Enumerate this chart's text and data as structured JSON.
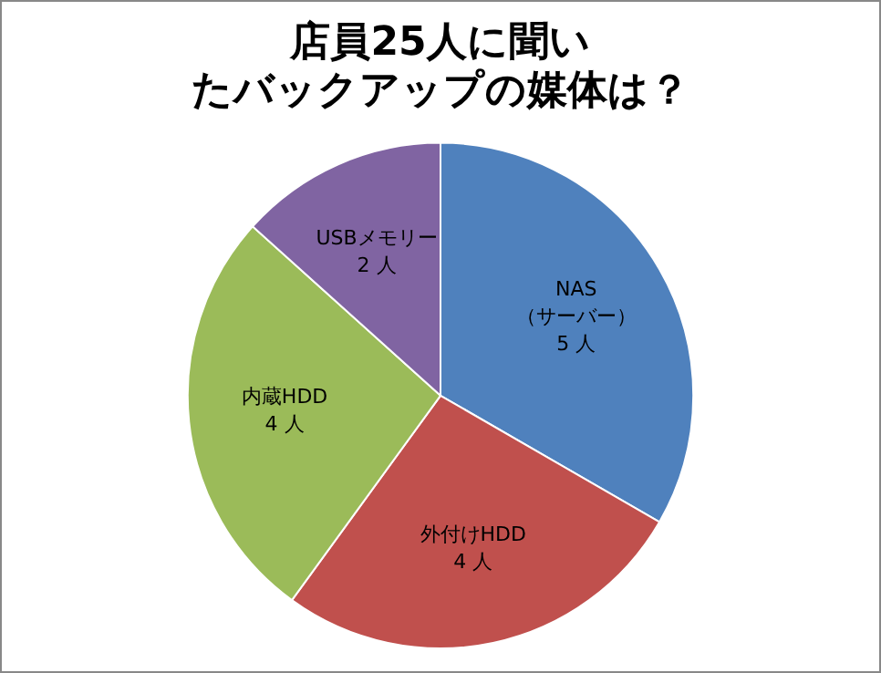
{
  "chart_data": {
    "type": "pie",
    "title": "店員25人に聞いたバックアップの媒体は？",
    "categories": [
      "NAS\n（サーバー）",
      "外付けHDD",
      "内蔵HDD",
      "USBメモリー"
    ],
    "values": [
      5,
      4,
      4,
      2
    ],
    "colors": [
      "#4f81bd",
      "#c0504d",
      "#9bbb59",
      "#8064a2"
    ],
    "value_labels": [
      "5 人",
      "4 人",
      "4 人",
      "2 人"
    ],
    "legend": false
  }
}
